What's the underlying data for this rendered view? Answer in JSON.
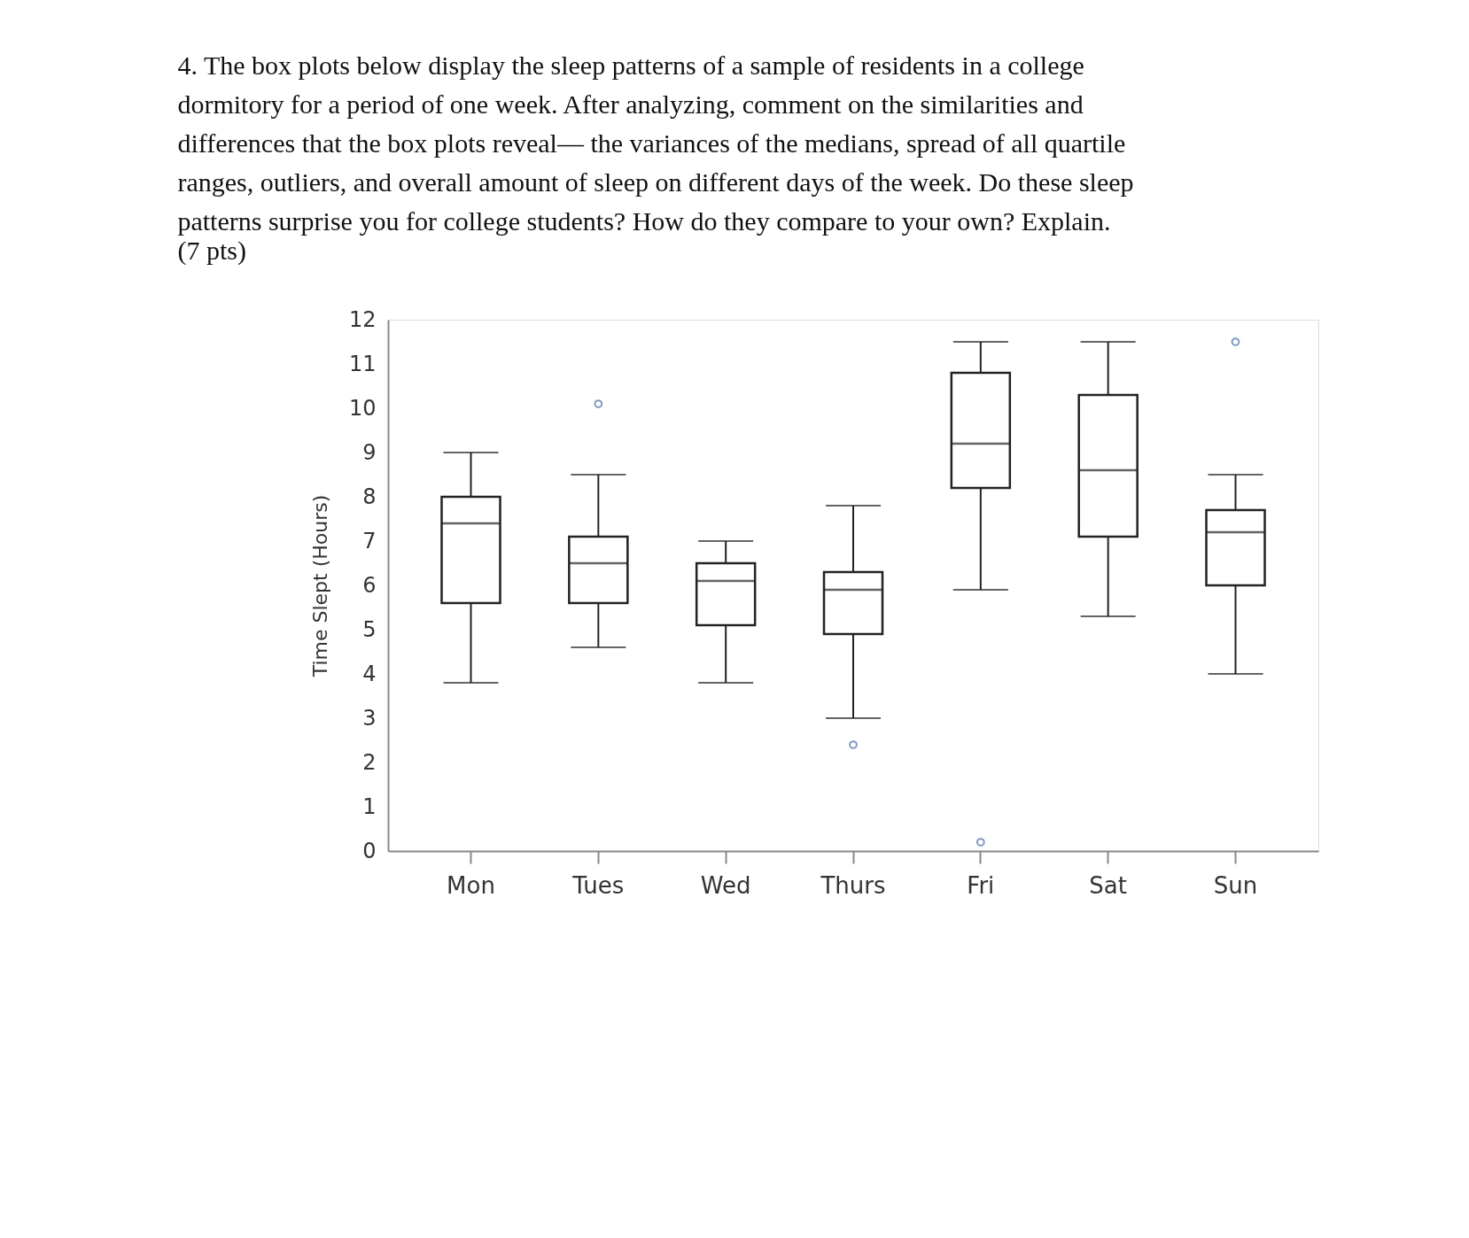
{
  "chart_data": {
    "type": "box",
    "title": "4. The box plots below display the sleep patterns of a sample of residents in a college dormitory for a period of one week. After analyzing, comment on the similarities and differences that the box plots reveal— the variances of the medians, spread of all quartile ranges, outliers, and overall amount of sleep on different days of the week. Do these sleep patterns surprise you for college students? How do they compare to your own? Explain.",
    "annotations": [
      "(7 pts)"
    ],
    "ylabel": "Time Slept (Hours)",
    "categories": [
      "Mon",
      "Tues",
      "Wed",
      "Thurs",
      "Fri",
      "Sat",
      "Sun"
    ],
    "boxes": [
      {
        "low": 3.8,
        "q1": 5.6,
        "median": 7.4,
        "q3": 8.0,
        "high": 9.0
      },
      {
        "low": 4.6,
        "q1": 5.6,
        "median": 6.5,
        "q3": 7.1,
        "high": 8.5,
        "outliers": [
          10.1
        ]
      },
      {
        "low": 3.8,
        "q1": 5.1,
        "median": 6.1,
        "q3": 6.5,
        "high": 7.0
      },
      {
        "low": 3.0,
        "q1": 4.9,
        "median": 5.9,
        "q3": 6.3,
        "high": 7.8,
        "outliers": [
          2.4
        ]
      },
      {
        "low": 5.9,
        "q1": 8.2,
        "median": 9.2,
        "q3": 10.8,
        "high": 11.5,
        "outliers": [
          0.2
        ]
      },
      {
        "low": 5.3,
        "q1": 7.1,
        "median": 8.6,
        "q3": 10.3,
        "high": 11.5
      },
      {
        "low": 4.0,
        "q1": 6.0,
        "median": 7.2,
        "q3": 7.7,
        "high": 8.5,
        "outliers": [
          11.5
        ]
      }
    ],
    "ylim": [
      0,
      12
    ],
    "yticks": [
      0,
      1,
      2,
      3,
      4,
      5,
      6,
      7,
      8,
      9,
      10,
      11,
      12
    ],
    "grid": false
  }
}
